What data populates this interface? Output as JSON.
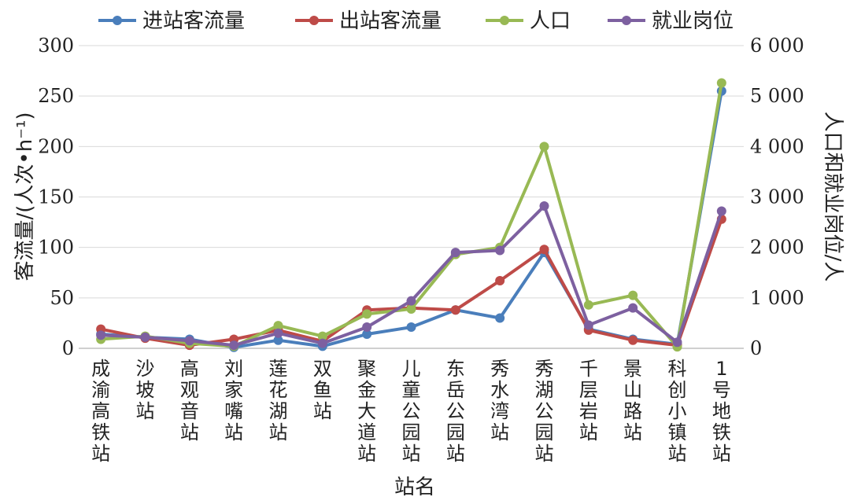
{
  "chart_data": {
    "type": "line",
    "categories": [
      "成渝高铁站",
      "沙坡站",
      "高观音站",
      "刘家嘴站",
      "莲花湖站",
      "双鱼站",
      "聚金大道站",
      "儿童公园站",
      "东岳公园站",
      "秀水湾站",
      "秀湖公园站",
      "千层岩站",
      "景山路站",
      "科创小镇站",
      "1号地铁站"
    ],
    "xlabel": "站名",
    "ylabel_left": "客流量/(人次•h⁻¹)",
    "ylabel_right": "人口和就业岗位/人",
    "ylim_left": [
      0,
      300
    ],
    "ylim_right": [
      0,
      6000
    ],
    "yticks_left": [
      "0",
      "50",
      "100",
      "150",
      "200",
      "250",
      "300"
    ],
    "yticks_right": [
      "0",
      "1 000",
      "2 000",
      "3 000",
      "4 000",
      "5 000",
      "6 000"
    ],
    "grid": true,
    "legend_position": "top",
    "series": [
      {
        "name": "进站客流量",
        "axis": "left",
        "color": "#4a7ebb",
        "values": [
          14,
          11,
          9,
          1,
          8,
          2,
          14,
          21,
          38,
          30,
          95,
          19,
          9,
          4,
          255
        ]
      },
      {
        "name": "出站客流量",
        "axis": "left",
        "color": "#be4b48",
        "values": [
          19,
          10,
          3,
          9,
          18,
          7,
          38,
          40,
          38,
          67,
          98,
          18,
          8,
          3,
          128
        ]
      },
      {
        "name": "人口",
        "axis": "right",
        "color": "#98b954",
        "values": [
          180,
          240,
          100,
          40,
          450,
          240,
          680,
          780,
          1860,
          2000,
          4000,
          860,
          1050,
          30,
          5260
        ]
      },
      {
        "name": "就业岗位",
        "axis": "right",
        "color": "#7d60a0",
        "values": [
          260,
          220,
          150,
          60,
          300,
          100,
          420,
          940,
          1900,
          1940,
          2820,
          460,
          800,
          120,
          2720
        ]
      }
    ]
  }
}
